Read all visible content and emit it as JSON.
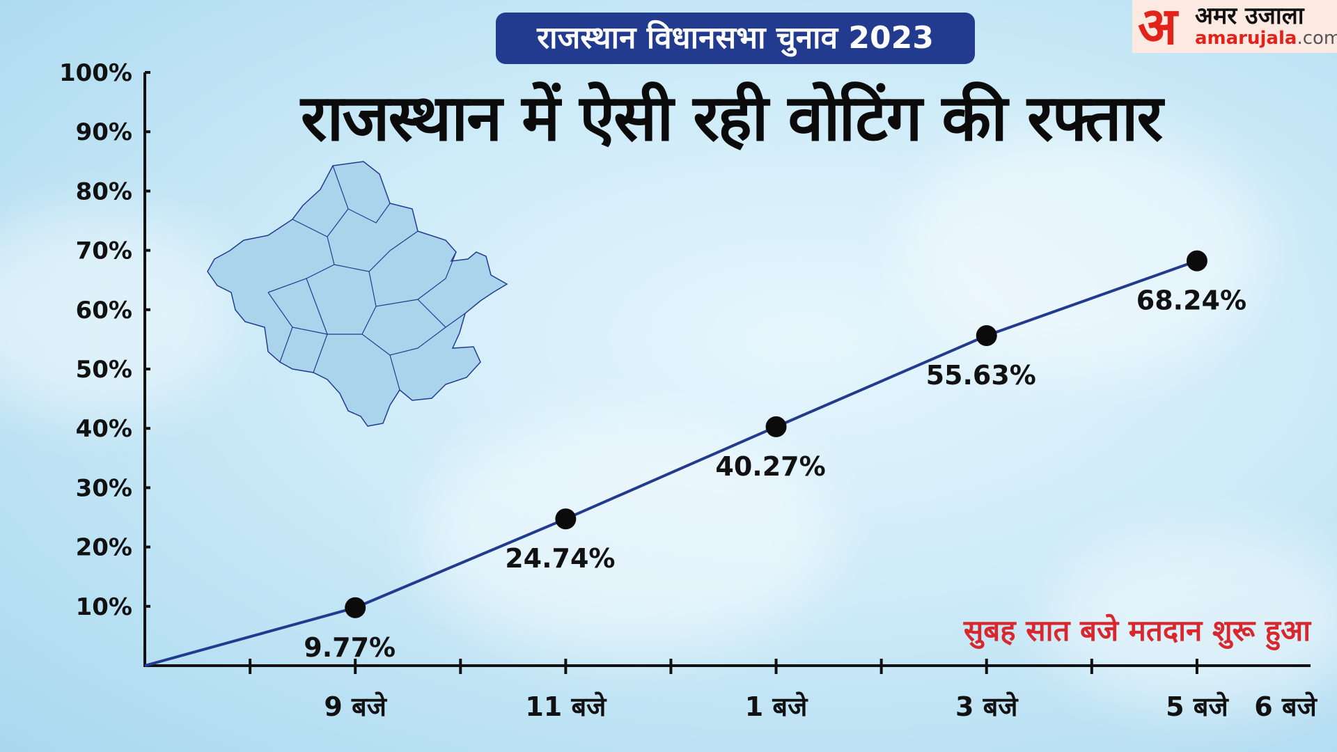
{
  "badge": "राजस्थान विधानसभा चुनाव 2023",
  "headline": "राजस्थान में ऐसी रही वोटिंग की रफ्तार",
  "logo": {
    "mark": "अ",
    "name": "अमर उजाला",
    "url_main": "amarujala",
    "url_domain": ".com"
  },
  "map_icon": "rajasthan-map",
  "colors": {
    "line": "#233b8f",
    "badge": "#233b8f",
    "note": "#d9282d",
    "logo_accent": "#e2231a"
  },
  "chart_data": {
    "type": "line",
    "title": "राजस्थान में ऐसी रही वोटिंग की रफ्तार",
    "xlabel": "",
    "ylabel": "",
    "y_ticks": [
      "100%",
      "90%",
      "80%",
      "70%",
      "60%",
      "50%",
      "40%",
      "30%",
      "20%",
      "10%"
    ],
    "ylim": [
      0,
      100
    ],
    "x_ticks": [
      {
        "hour": 9,
        "label": "9 बजे"
      },
      {
        "hour": 11,
        "label": "11 बजे"
      },
      {
        "hour": 13,
        "label": "1 बजे"
      },
      {
        "hour": 15,
        "label": "3 बजे"
      },
      {
        "hour": 17,
        "label": "5 बजे"
      },
      {
        "hour": 18,
        "label": "6 बजे"
      }
    ],
    "xlim": [
      7,
      18
    ],
    "start": {
      "hour": 7,
      "value": 0
    },
    "series": [
      {
        "points": [
          {
            "hour": 9,
            "value": 9.77,
            "label": "9.77%"
          },
          {
            "hour": 11,
            "value": 24.74,
            "label": "24.74%"
          },
          {
            "hour": 13,
            "value": 40.27,
            "label": "40.27%"
          },
          {
            "hour": 15,
            "value": 55.63,
            "label": "55.63%"
          },
          {
            "hour": 17,
            "value": 68.24,
            "label": "68.24%"
          }
        ]
      }
    ],
    "annotation": "सुबह सात बजे मतदान शुरू हुआ",
    "grid": false
  }
}
